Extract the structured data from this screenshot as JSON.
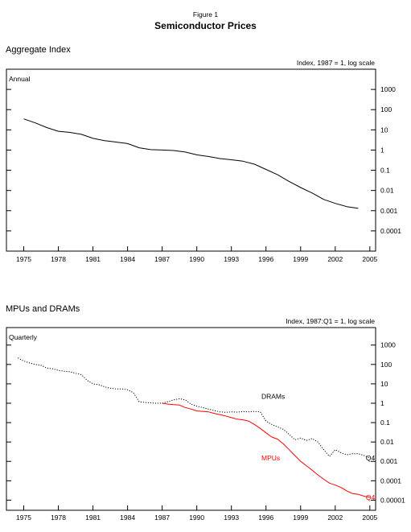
{
  "figure": {
    "label": "Figure 1",
    "title": "Semiconductor Prices"
  },
  "chart_data": [
    {
      "type": "line",
      "panel_title": "Aggregate Index",
      "scale_note": "Index, 1987 = 1, log scale",
      "frequency_label": "Annual",
      "y_scale": "log",
      "y_ticks": [
        {
          "value": 1000,
          "label": "1000"
        },
        {
          "value": 100,
          "label": "100"
        },
        {
          "value": 10,
          "label": "10"
        },
        {
          "value": 1,
          "label": "1"
        },
        {
          "value": 0.1,
          "label": "0.1"
        },
        {
          "value": 0.01,
          "label": "0.01"
        },
        {
          "value": 0.001,
          "label": "0.001"
        },
        {
          "value": 0.0001,
          "label": "0.0001"
        }
      ],
      "ylim": [
        1e-05,
        10000
      ],
      "x_ticks": [
        1975,
        1978,
        1981,
        1984,
        1987,
        1990,
        1993,
        1996,
        1999,
        2002,
        2005
      ],
      "xlim": [
        1973.5,
        2005.5
      ],
      "grid": false,
      "series": [
        {
          "color": "#000000",
          "dash": "solid",
          "points": [
            [
              1975,
              35
            ],
            [
              1976,
              22
            ],
            [
              1977,
              13
            ],
            [
              1978,
              8.5
            ],
            [
              1979,
              7.5
            ],
            [
              1980,
              6.0
            ],
            [
              1981,
              3.8
            ],
            [
              1982,
              2.9
            ],
            [
              1983,
              2.5
            ],
            [
              1984,
              2.1
            ],
            [
              1985,
              1.3
            ],
            [
              1986,
              1.05
            ],
            [
              1987,
              1.0
            ],
            [
              1988,
              0.95
            ],
            [
              1989,
              0.8
            ],
            [
              1990,
              0.58
            ],
            [
              1991,
              0.48
            ],
            [
              1992,
              0.38
            ],
            [
              1993,
              0.33
            ],
            [
              1994,
              0.28
            ],
            [
              1995,
              0.2
            ],
            [
              1996,
              0.11
            ],
            [
              1997,
              0.06
            ],
            [
              1998,
              0.028
            ],
            [
              1999,
              0.014
            ],
            [
              2000,
              0.0075
            ],
            [
              2001,
              0.0036
            ],
            [
              2002,
              0.0023
            ],
            [
              2003,
              0.0016
            ],
            [
              2004,
              0.0013
            ]
          ]
        }
      ]
    },
    {
      "type": "line",
      "panel_title": "MPUs and DRAMs",
      "scale_note": "Index, 1987:Q1 = 1, log scale",
      "frequency_label": "Quarterly",
      "y_scale": "log",
      "y_ticks": [
        {
          "value": 1000,
          "label": "1000"
        },
        {
          "value": 100,
          "label": "100"
        },
        {
          "value": 10,
          "label": "10"
        },
        {
          "value": 1,
          "label": "1"
        },
        {
          "value": 0.1,
          "label": "0.1"
        },
        {
          "value": 0.01,
          "label": "0.01"
        },
        {
          "value": 0.001,
          "label": "0.001"
        },
        {
          "value": 0.0001,
          "label": "0.0001"
        },
        {
          "value": 1e-05,
          "label": "0.00001"
        }
      ],
      "ylim": [
        3e-06,
        8000
      ],
      "x_ticks": [
        1975,
        1978,
        1981,
        1984,
        1987,
        1990,
        1993,
        1996,
        1999,
        2002,
        2005
      ],
      "xlim": [
        1973.5,
        2005.5
      ],
      "grid": false,
      "series": [
        {
          "name": "DRAMs",
          "color": "#000000",
          "dash": "dotted",
          "end_label": "Q4",
          "points": [
            [
              1974.5,
              220
            ],
            [
              1975,
              150
            ],
            [
              1975.5,
              120
            ],
            [
              1976,
              100
            ],
            [
              1976.5,
              90
            ],
            [
              1977,
              65
            ],
            [
              1977.5,
              60
            ],
            [
              1978,
              50
            ],
            [
              1978.5,
              45
            ],
            [
              1979,
              42
            ],
            [
              1979.5,
              35
            ],
            [
              1980,
              30
            ],
            [
              1980.5,
              15
            ],
            [
              1981,
              10
            ],
            [
              1981.5,
              9
            ],
            [
              1982,
              7
            ],
            [
              1982.5,
              6
            ],
            [
              1983,
              5.5
            ],
            [
              1983.5,
              5.5
            ],
            [
              1984,
              5
            ],
            [
              1984.5,
              3.5
            ],
            [
              1985,
              1.2
            ],
            [
              1985.5,
              1.1
            ],
            [
              1986,
              1.05
            ],
            [
              1986.5,
              1.0
            ],
            [
              1987,
              1.0
            ],
            [
              1987.5,
              1.2
            ],
            [
              1988,
              1.5
            ],
            [
              1988.5,
              1.7
            ],
            [
              1989,
              1.5
            ],
            [
              1989.5,
              0.9
            ],
            [
              1990,
              0.7
            ],
            [
              1990.5,
              0.6
            ],
            [
              1991,
              0.5
            ],
            [
              1991.5,
              0.42
            ],
            [
              1992,
              0.36
            ],
            [
              1992.5,
              0.34
            ],
            [
              1993,
              0.36
            ],
            [
              1993.5,
              0.35
            ],
            [
              1994,
              0.37
            ],
            [
              1994.5,
              0.36
            ],
            [
              1995,
              0.38
            ],
            [
              1995.5,
              0.36
            ],
            [
              1996,
              0.12
            ],
            [
              1996.5,
              0.08
            ],
            [
              1997,
              0.06
            ],
            [
              1997.5,
              0.045
            ],
            [
              1998,
              0.025
            ],
            [
              1998.5,
              0.013
            ],
            [
              1999,
              0.016
            ],
            [
              1999.5,
              0.012
            ],
            [
              2000,
              0.015
            ],
            [
              2000.5,
              0.01
            ],
            [
              2001,
              0.004
            ],
            [
              2001.5,
              0.0018
            ],
            [
              2002,
              0.004
            ],
            [
              2002.5,
              0.0028
            ],
            [
              2003,
              0.0022
            ],
            [
              2003.5,
              0.0025
            ],
            [
              2004,
              0.0025
            ],
            [
              2004.5,
              0.002
            ],
            [
              2005,
              0.0015
            ]
          ]
        },
        {
          "name": "MPUs",
          "color": "#ff0000",
          "dash": "solid",
          "end_label": "Q4",
          "points": [
            [
              1987,
              1.0
            ],
            [
              1987.5,
              0.9
            ],
            [
              1988,
              0.85
            ],
            [
              1988.5,
              0.8
            ],
            [
              1989,
              0.6
            ],
            [
              1989.5,
              0.5
            ],
            [
              1990,
              0.4
            ],
            [
              1990.5,
              0.38
            ],
            [
              1991,
              0.36
            ],
            [
              1991.5,
              0.3
            ],
            [
              1992,
              0.26
            ],
            [
              1992.5,
              0.22
            ],
            [
              1993,
              0.18
            ],
            [
              1993.5,
              0.15
            ],
            [
              1994,
              0.14
            ],
            [
              1994.5,
              0.12
            ],
            [
              1995,
              0.08
            ],
            [
              1995.5,
              0.05
            ],
            [
              1996,
              0.03
            ],
            [
              1996.5,
              0.018
            ],
            [
              1997,
              0.014
            ],
            [
              1997.5,
              0.008
            ],
            [
              1998,
              0.004
            ],
            [
              1998.5,
              0.002
            ],
            [
              1999,
              0.001
            ],
            [
              1999.5,
              0.0006
            ],
            [
              2000,
              0.00035
            ],
            [
              2000.5,
              0.0002
            ],
            [
              2001,
              0.00012
            ],
            [
              2001.5,
              7.5e-05
            ],
            [
              2002,
              6e-05
            ],
            [
              2002.5,
              4.5e-05
            ],
            [
              2003,
              3e-05
            ],
            [
              2003.5,
              2.2e-05
            ],
            [
              2004,
              2e-05
            ],
            [
              2004.5,
              1.6e-05
            ],
            [
              2005,
              1.4e-05
            ]
          ]
        }
      ]
    }
  ]
}
